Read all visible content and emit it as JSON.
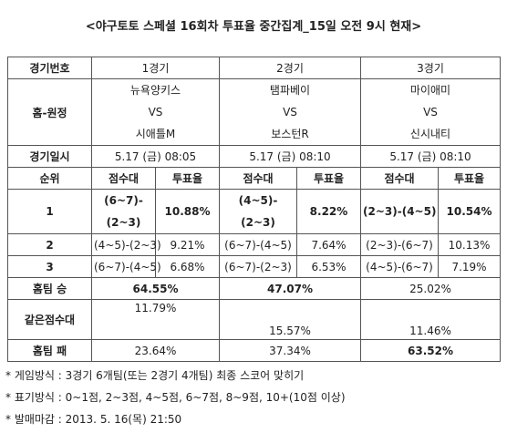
{
  "title": "<야구토토 스페셜 16회차 투표율 중간집계_15일 오전 9시 현재>",
  "table": {
    "games_row": {
      "label": "경기번호",
      "games": [
        "1경기",
        "2경기",
        "3경기"
      ]
    },
    "teams_row": {
      "label": "홈-원정",
      "games": [
        {
          "home": "뉴욕양키스",
          "vs": "VS",
          "away": "시애틀M"
        },
        {
          "home": "탬파베이",
          "vs": "VS",
          "away": "보스턴R"
        },
        {
          "home": "마이애미",
          "vs": "VS",
          "away": "신시내티"
        }
      ]
    },
    "date_row": {
      "label": "경기일시",
      "games": [
        "5.17 (금) 08:05",
        "5.17 (금) 08:10",
        "5.17 (금) 08:10"
      ]
    },
    "column_header": {
      "label": "순위",
      "columns": [
        "점수대",
        "투표율",
        "점수대",
        "투표율",
        "점수대",
        "투표율"
      ]
    },
    "rank_rows": [
      {
        "rank": "1",
        "cells": [
          "(6~7)-(2~3)",
          "10.88%",
          "(4~5)-(2~3)",
          "8.22%",
          "(2~3)-(4~5)",
          "10.54%"
        ]
      },
      {
        "rank": "2",
        "cells": [
          "(4~5)-(2~3)",
          "9.21%",
          "(6~7)-(4~5)",
          "7.64%",
          "(2~3)-(6~7)",
          "10.13%"
        ]
      },
      {
        "rank": "3",
        "cells": [
          "(6~7)-(4~5)",
          "6.68%",
          "(6~7)-(2~3)",
          "6.53%",
          "(4~5)-(6~7)",
          "7.19%"
        ]
      }
    ],
    "result_rows": [
      {
        "label": "홈팀 승",
        "values": [
          "64.55%",
          "47.07%",
          "25.02%"
        ]
      },
      {
        "label": "같은점수대",
        "values": [
          "11.79%",
          "15.57%",
          "11.46%"
        ]
      },
      {
        "label": "홈팀 패",
        "values": [
          "23.64%",
          "37.34%",
          "63.52%"
        ]
      }
    ]
  },
  "notes": [
    "* 게임방식 : 3경기 6개팀(또는 2경기 4개팀) 최종 스코어 맞히기",
    "* 표기방식 : 0~1점, 2~3점, 4~5점, 6~7점, 8~9점, 10+(10점 이상)",
    "* 발매마감 : 2013. 5. 16(목) 21:50"
  ]
}
